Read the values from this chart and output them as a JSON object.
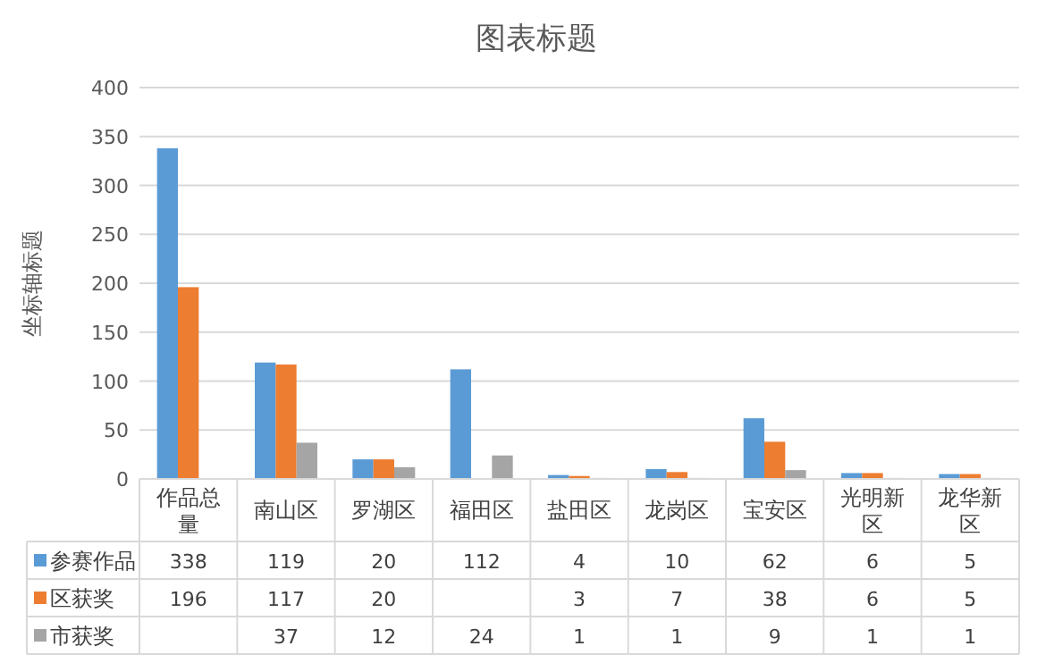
{
  "chart_data": {
    "type": "bar",
    "title": "图表标题",
    "ylabel": "坐标轴标题",
    "categories": [
      "作品总量",
      "南山区",
      "罗湖区",
      "福田区",
      "盐田区",
      "龙岗区",
      "宝安区",
      "光明新区",
      "龙华新区"
    ],
    "series": [
      {
        "name": "参赛作品",
        "color": "#5b9bd5",
        "values": [
          338,
          119,
          20,
          112,
          4,
          10,
          62,
          6,
          5
        ]
      },
      {
        "name": "区获奖",
        "color": "#ed7d31",
        "values": [
          196,
          117,
          20,
          null,
          3,
          7,
          38,
          6,
          5
        ]
      },
      {
        "name": "市获奖",
        "color": "#a5a5a5",
        "values": [
          null,
          37,
          12,
          24,
          1,
          1,
          9,
          1,
          1
        ]
      }
    ],
    "ylim": [
      0,
      400
    ],
    "yticks": [
      0,
      50,
      100,
      150,
      200,
      250,
      300,
      350,
      400
    ],
    "grid": "y",
    "legend": "bottom left",
    "data_labels": true
  }
}
